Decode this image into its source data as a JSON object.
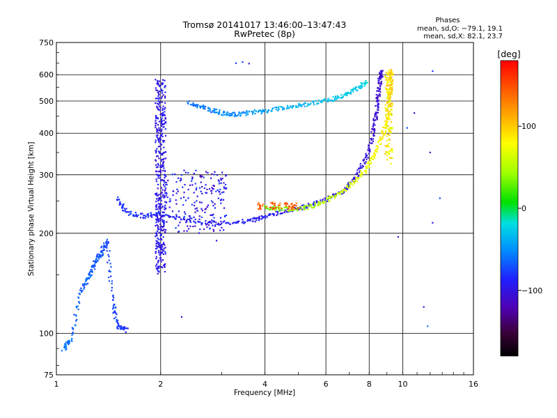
{
  "chart_data": {
    "type": "scatter",
    "title_line1": "Tromsø 20141017 13:46:00–13:47:43",
    "title_line2": "RwPretec (8p)",
    "stats": {
      "header": "Phases",
      "line_o": "mean, sd,O: −79.1, 19.1",
      "line_x": "mean, sd,X:  82.1, 23.7"
    },
    "xlabel": "Frequency [MHz]",
    "ylabel": "Stationary phase Virtual Height [km]",
    "x_scale": "log",
    "y_scale": "log",
    "xlim": [
      1,
      16
    ],
    "ylim": [
      75,
      750
    ],
    "x_ticks": [
      1,
      2,
      4,
      6,
      8,
      10,
      16
    ],
    "x_tick_labels": [
      "1",
      "2",
      "4",
      "6",
      "8",
      "10",
      "16"
    ],
    "y_ticks": [
      75,
      100,
      200,
      300,
      400,
      500,
      600,
      750
    ],
    "y_tick_labels": [
      "75",
      "100",
      "200",
      "300",
      "400",
      "500",
      "600",
      "750"
    ],
    "grid": true,
    "colorbar": {
      "label": "[deg]",
      "range": [
        -180,
        180
      ],
      "ticks": [
        100,
        0,
        -100
      ],
      "tick_labels": [
        "100",
        "0",
        "−100"
      ],
      "colors": [
        "#000000",
        "#400040",
        "#5000a0",
        "#2020ff",
        "#0090ff",
        "#00e0e0",
        "#00e000",
        "#a0ff00",
        "#ffff00",
        "#ff8000",
        "#ff0000"
      ]
    },
    "traces": [
      {
        "name": "E/F1 low trace",
        "x_start": 1.05,
        "x_end": 1.85,
        "points": [
          [
            1.05,
            90
          ],
          [
            1.1,
            95
          ],
          [
            1.18,
            135
          ],
          [
            1.25,
            150
          ],
          [
            1.3,
            165
          ],
          [
            1.35,
            175
          ],
          [
            1.4,
            190
          ],
          [
            1.45,
            125
          ],
          [
            1.5,
            105
          ],
          [
            1.6,
            102
          ]
        ],
        "phase_start": -60,
        "phase_end": -80
      },
      {
        "name": "O-mode F2 trace",
        "points": [
          [
            1.5,
            255
          ],
          [
            1.6,
            230
          ],
          [
            1.8,
            225
          ],
          [
            2.0,
            230
          ],
          [
            2.4,
            218
          ],
          [
            3.0,
            214
          ],
          [
            3.6,
            218
          ],
          [
            4.0,
            224
          ],
          [
            4.6,
            234
          ],
          [
            5.2,
            240
          ],
          [
            6.0,
            252
          ],
          [
            6.8,
            270
          ],
          [
            7.4,
            300
          ],
          [
            7.9,
            340
          ],
          [
            8.2,
            400
          ],
          [
            8.4,
            460
          ],
          [
            8.5,
            520
          ],
          [
            8.6,
            580
          ],
          [
            8.7,
            620
          ]
        ],
        "phase_start": -80,
        "phase_end": -110
      },
      {
        "name": "X-mode F2 trace",
        "points": [
          [
            4.0,
            240
          ],
          [
            4.5,
            236
          ],
          [
            5.2,
            238
          ],
          [
            5.8,
            246
          ],
          [
            6.5,
            262
          ],
          [
            7.2,
            285
          ],
          [
            7.8,
            310
          ],
          [
            8.3,
            345
          ],
          [
            8.7,
            390
          ],
          [
            9.0,
            440
          ],
          [
            9.15,
            500
          ],
          [
            9.25,
            560
          ],
          [
            9.3,
            620
          ]
        ],
        "phase_start": 30,
        "phase_end": 110
      },
      {
        "name": "Upper echo trace",
        "points": [
          [
            2.4,
            495
          ],
          [
            2.7,
            475
          ],
          [
            3.0,
            460
          ],
          [
            3.3,
            455
          ],
          [
            3.7,
            462
          ],
          [
            4.2,
            470
          ],
          [
            4.8,
            480
          ],
          [
            5.5,
            492
          ],
          [
            6.2,
            505
          ],
          [
            6.8,
            522
          ],
          [
            7.4,
            545
          ],
          [
            7.9,
            575
          ]
        ],
        "phase_start": -60,
        "phase_end": -20
      },
      {
        "name": "Vertical spread near 2 MHz",
        "x_center": 2.0,
        "y_range": [
          150,
          580
        ],
        "phase_start": -80,
        "phase_end": -110
      }
    ],
    "isolated_points": [
      [
        3.3,
        650
      ],
      [
        3.45,
        655
      ],
      [
        3.6,
        648
      ],
      [
        12.2,
        615
      ],
      [
        10.8,
        460
      ],
      [
        12.0,
        350
      ],
      [
        12.8,
        255
      ],
      [
        10.3,
        415
      ],
      [
        11.5,
        120
      ],
      [
        11.8,
        105
      ],
      [
        12.2,
        215
      ],
      [
        9.7,
        195
      ],
      [
        2.3,
        112
      ],
      [
        2.9,
        190
      ]
    ]
  }
}
